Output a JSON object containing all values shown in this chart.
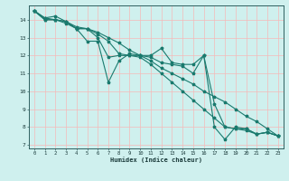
{
  "xlabel": "Humidex (Indice chaleur)",
  "xlim": [
    -0.5,
    23.5
  ],
  "ylim": [
    6.8,
    14.8
  ],
  "yticks": [
    7,
    8,
    9,
    10,
    11,
    12,
    13,
    14
  ],
  "xticks": [
    0,
    1,
    2,
    3,
    4,
    5,
    6,
    7,
    8,
    9,
    10,
    11,
    12,
    13,
    14,
    15,
    16,
    17,
    18,
    19,
    20,
    21,
    22,
    23
  ],
  "bg_color": "#cff0ee",
  "grid_color_major": "#f5b8b8",
  "grid_color_minor": "#f5b8b8",
  "line_color": "#1a7a6e",
  "lines": [
    {
      "x": [
        0,
        1,
        2,
        3,
        4,
        5,
        6,
        7,
        8,
        9,
        10,
        11,
        12,
        13,
        14,
        15,
        16,
        17,
        18,
        19,
        20,
        21,
        22,
        23
      ],
      "y": [
        14.5,
        14.1,
        14.2,
        13.9,
        13.5,
        12.8,
        12.8,
        10.5,
        11.7,
        12.1,
        12.0,
        12.0,
        12.4,
        11.6,
        11.5,
        11.5,
        12.0,
        8.0,
        7.3,
        8.0,
        7.9,
        7.6,
        7.7,
        7.5
      ]
    },
    {
      "x": [
        0,
        1,
        2,
        3,
        4,
        5,
        6,
        7,
        8,
        9,
        10,
        11,
        12,
        13,
        14,
        15,
        16,
        17,
        18,
        19,
        20,
        21,
        22,
        23
      ],
      "y": [
        14.5,
        14.1,
        14.0,
        13.8,
        13.5,
        13.5,
        13.0,
        11.9,
        12.0,
        12.0,
        12.0,
        11.9,
        11.6,
        11.5,
        11.4,
        11.0,
        12.0,
        9.3,
        8.0,
        7.9,
        7.9,
        7.6,
        7.7,
        7.5
      ]
    },
    {
      "x": [
        0,
        1,
        2,
        3,
        4,
        5,
        6,
        7,
        8,
        9,
        10,
        11,
        12,
        13,
        14,
        15,
        16,
        17,
        18,
        19,
        20,
        21,
        22,
        23
      ],
      "y": [
        14.5,
        14.0,
        14.0,
        13.9,
        13.5,
        13.5,
        13.2,
        12.8,
        12.1,
        12.0,
        11.9,
        11.5,
        11.0,
        10.5,
        10.0,
        9.5,
        9.0,
        8.5,
        8.0,
        7.9,
        7.8,
        7.6,
        7.7,
        7.5
      ]
    },
    {
      "x": [
        0,
        1,
        2,
        3,
        4,
        5,
        6,
        7,
        8,
        9,
        10,
        11,
        12,
        13,
        14,
        15,
        16,
        17,
        18,
        19,
        20,
        21,
        22,
        23
      ],
      "y": [
        14.5,
        14.0,
        14.0,
        13.9,
        13.6,
        13.5,
        13.3,
        13.0,
        12.7,
        12.3,
        12.0,
        11.7,
        11.3,
        11.0,
        10.7,
        10.4,
        10.0,
        9.7,
        9.4,
        9.0,
        8.6,
        8.3,
        7.9,
        7.5
      ]
    }
  ]
}
